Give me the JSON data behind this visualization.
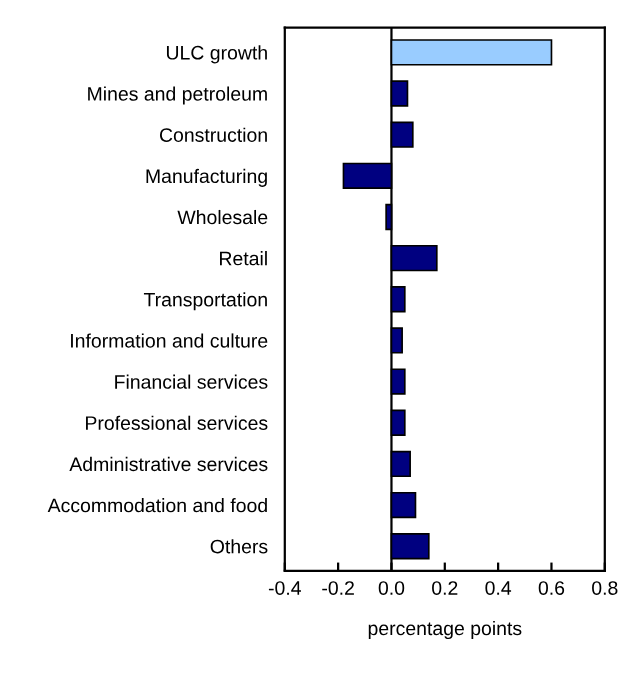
{
  "chart_data": {
    "type": "bar",
    "orientation": "horizontal",
    "categories": [
      "ULC growth",
      "Mines and petroleum",
      "Construction",
      "Manufacturing",
      "Wholesale",
      "Retail",
      "Transportation",
      "Information and culture",
      "Financial services",
      "Professional services",
      "Administrative services",
      "Accommodation and food",
      "Others"
    ],
    "values": [
      0.6,
      0.06,
      0.08,
      -0.18,
      -0.02,
      0.17,
      0.05,
      0.04,
      0.05,
      0.05,
      0.07,
      0.09,
      0.14
    ],
    "colors": [
      "#99ccff",
      "#000080",
      "#000080",
      "#000080",
      "#000080",
      "#000080",
      "#000080",
      "#000080",
      "#000080",
      "#000080",
      "#000080",
      "#000080",
      "#000080"
    ],
    "xlabel": "percentage points",
    "xlim": [
      -0.4,
      0.8
    ],
    "xticks": [
      {
        "value": -0.4,
        "label": "-0.4"
      },
      {
        "value": -0.2,
        "label": "-0.2"
      },
      {
        "value": 0,
        "label": "0.0"
      },
      {
        "value": 0.2,
        "label": "0.2"
      },
      {
        "value": 0.4,
        "label": "0.4"
      },
      {
        "value": 0.6,
        "label": "0.6"
      },
      {
        "value": 0.8,
        "label": "0.8"
      }
    ],
    "ref_lines": [
      {
        "axis": "x",
        "value": 0,
        "color": "#000000"
      }
    ],
    "grid": false,
    "legend": false
  }
}
